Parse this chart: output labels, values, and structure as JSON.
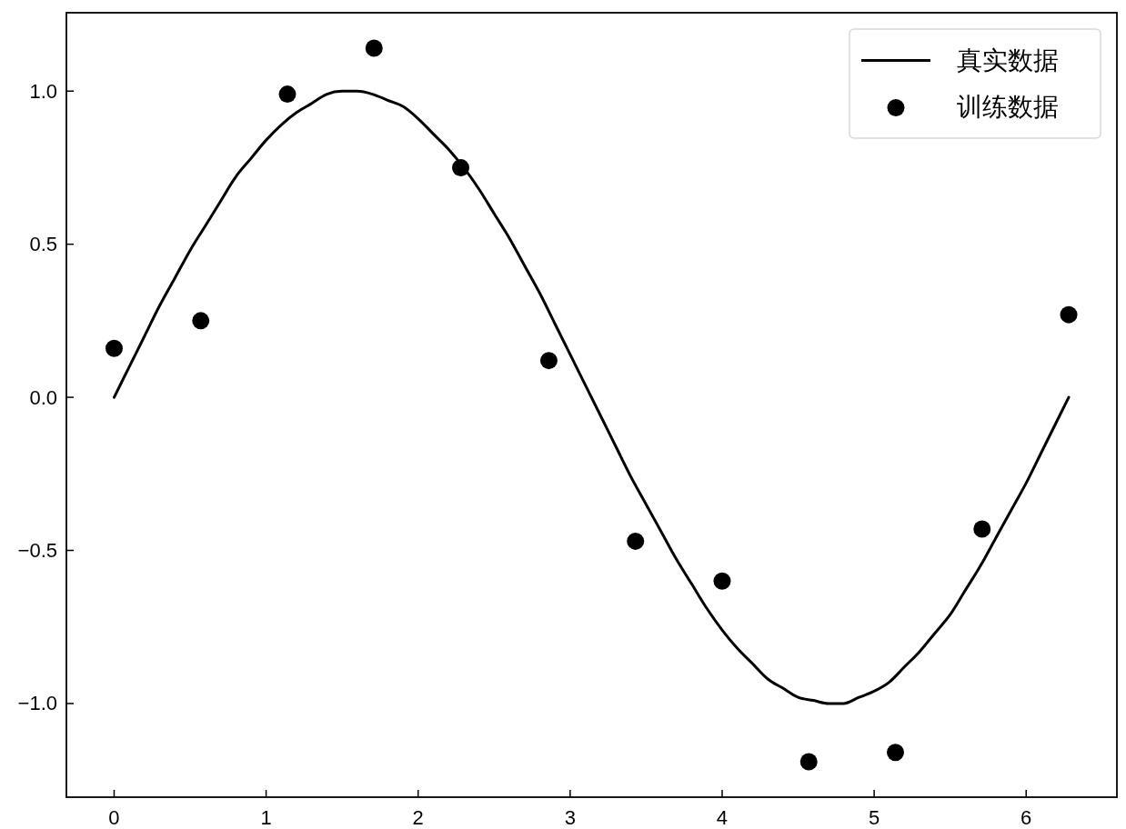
{
  "chart_data": {
    "type": "line",
    "xlim": [
      -0.314,
      6.597
    ],
    "xticks": [
      0,
      1,
      2,
      3,
      4,
      5,
      6
    ],
    "ylim": [
      -1.306,
      1.256
    ],
    "yticks": [
      {
        "value": -1,
        "label": "−1.0"
      },
      {
        "value": -0.5,
        "label": "−0.5"
      },
      {
        "value": 0,
        "label": "0.0"
      },
      0.5,
      {
        "value": 1,
        "label": "1.0"
      }
    ],
    "legend": "top right",
    "series": [
      {
        "name": "真实数据",
        "color": "#000000",
        "x": [
          0,
          0.1,
          0.2,
          0.3,
          0.4,
          0.5,
          0.6,
          0.7,
          0.8,
          0.9,
          1.0,
          1.1,
          1.2,
          1.3,
          1.4,
          1.5,
          1.6,
          1.7,
          1.8,
          1.9,
          2.0,
          2.1,
          2.2,
          2.3,
          2.4,
          2.5,
          2.6,
          2.7,
          2.8,
          2.9,
          3.0,
          3.1,
          3.2,
          3.3,
          3.4,
          3.5,
          3.6,
          3.7,
          3.8,
          3.9,
          4.0,
          4.1,
          4.2,
          4.3,
          4.4,
          4.5,
          4.6,
          4.7,
          4.8,
          4.9,
          5.0,
          5.1,
          5.2,
          5.3,
          5.4,
          5.5,
          5.6,
          5.7,
          5.8,
          5.9,
          6.0,
          6.1,
          6.2,
          6.28
        ],
        "values": [
          0,
          0.1,
          0.2,
          0.3,
          0.39,
          0.48,
          0.56,
          0.64,
          0.72,
          0.78,
          0.84,
          0.89,
          0.93,
          0.96,
          0.99,
          1.0,
          1.0,
          0.99,
          0.97,
          0.95,
          0.91,
          0.86,
          0.81,
          0.75,
          0.68,
          0.6,
          0.52,
          0.43,
          0.34,
          0.24,
          0.14,
          0.04,
          -0.06,
          -0.16,
          -0.26,
          -0.35,
          -0.44,
          -0.53,
          -0.61,
          -0.69,
          -0.76,
          -0.82,
          -0.87,
          -0.92,
          -0.95,
          -0.98,
          -0.99,
          -1.0,
          -1.0,
          -0.98,
          -0.96,
          -0.93,
          -0.88,
          -0.83,
          -0.77,
          -0.71,
          -0.63,
          -0.55,
          -0.46,
          -0.37,
          -0.28,
          -0.18,
          -0.08,
          0
        ]
      },
      {
        "name": "训练数据",
        "type": "scatter",
        "color": "#000000",
        "marker": "circle",
        "x": [
          0,
          0.57,
          1.14,
          1.71,
          2.28,
          2.86,
          3.43,
          4.0,
          4.57,
          5.14,
          5.71,
          6.28
        ],
        "values": [
          0.16,
          0.25,
          0.99,
          1.14,
          0.75,
          0.12,
          -0.47,
          -0.6,
          -1.19,
          -1.16,
          -0.43,
          0.27
        ]
      }
    ]
  }
}
